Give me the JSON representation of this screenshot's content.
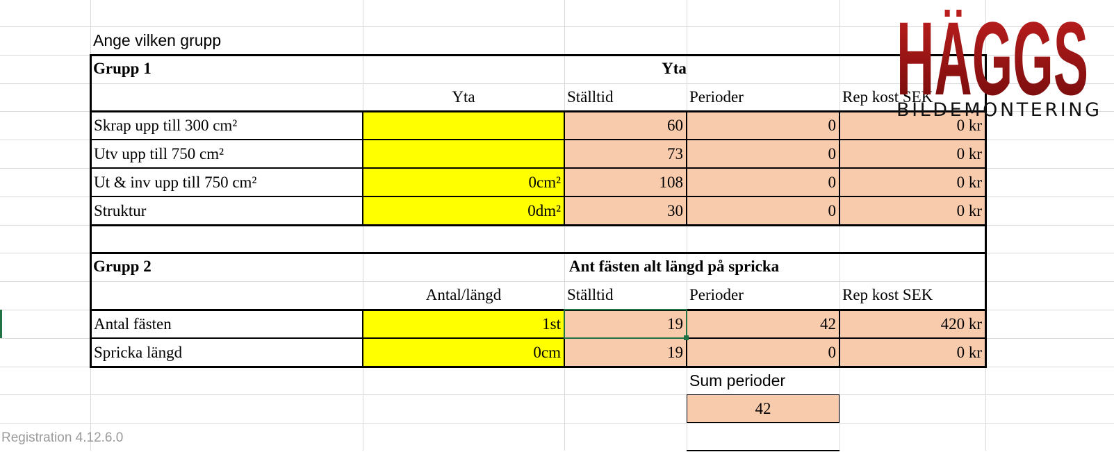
{
  "label": "Ange vilken grupp",
  "logo": {
    "title": "HÄGGS",
    "subtitle": "BILDEMONTERING"
  },
  "group1": {
    "name": "Grupp 1",
    "heading": "Yta",
    "columns": [
      "Yta",
      "Ställtid",
      "Perioder",
      "Rep kost SEK"
    ],
    "rows": [
      {
        "label": "Skrap upp till 300 cm²",
        "stalltid": 60,
        "perioder": 0,
        "kostnad": "0 kr"
      },
      {
        "label": "Utv upp till 750 cm²",
        "stalltid": 73,
        "perioder": 0,
        "kostnad": "0 kr"
      },
      {
        "label": "Ut & inv upp till 750 cm²",
        "input": "0cm²",
        "stalltid": 108,
        "perioder": 0,
        "kostnad": "0 kr"
      },
      {
        "label": "Struktur",
        "input": "0dm²",
        "stalltid": 30,
        "perioder": 0,
        "kostnad": "0 kr"
      }
    ]
  },
  "group2": {
    "name": "Grupp 2",
    "heading": "Ant fästen alt längd på spricka",
    "columns": [
      "Antal/längd",
      "Ställtid",
      "Perioder",
      "Rep kost SEK"
    ],
    "rows": [
      {
        "label": "Antal fästen",
        "input": "1st",
        "stalltid": 19,
        "perioder": 42,
        "kostnad": "420 kr"
      },
      {
        "label": "Spricka längd",
        "input": "0cm",
        "stalltid": 19,
        "perioder": 0,
        "kostnad": "0 kr"
      }
    ]
  },
  "sum": {
    "label": "Sum perioder",
    "value": 42
  },
  "footer": "Registration 4.12.6.0"
}
